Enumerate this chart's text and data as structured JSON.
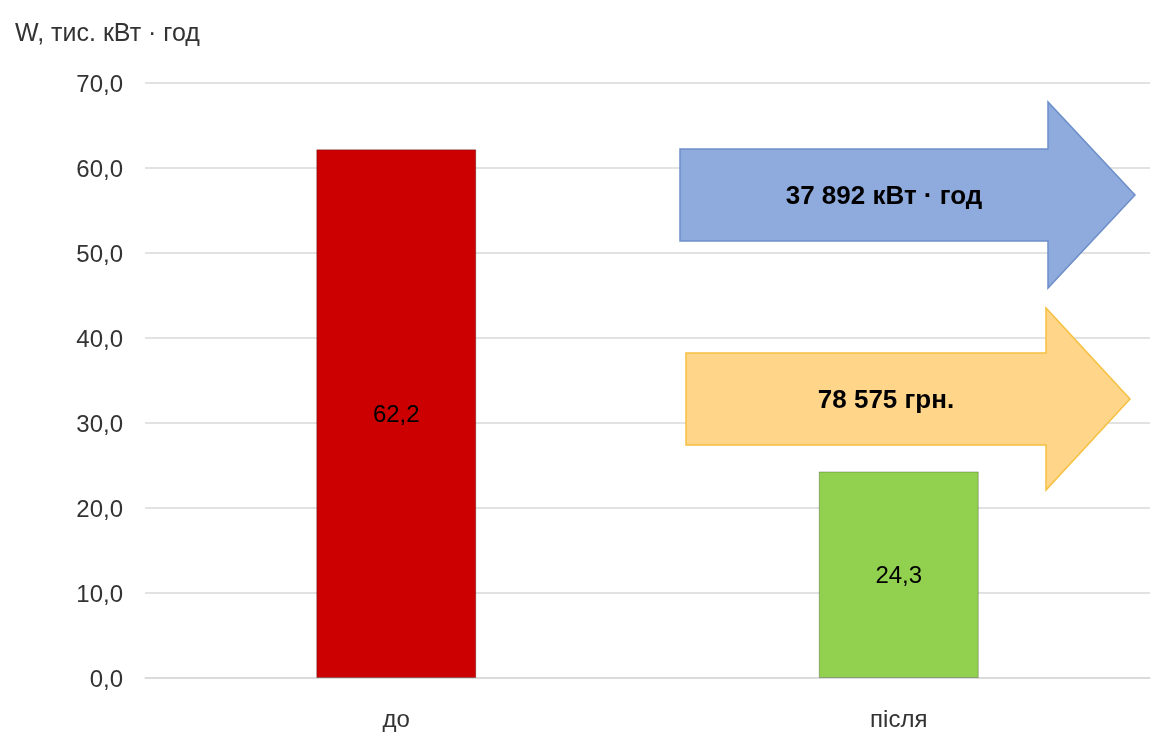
{
  "chart_data": {
    "type": "bar",
    "ylabel": "W, тис. кВт · год",
    "categories": [
      "до",
      "після"
    ],
    "values": [
      62.2,
      24.3
    ],
    "colors": [
      "#cc0000",
      "#92d050"
    ],
    "value_labels": [
      "62,2",
      "24,3"
    ],
    "ylim": [
      0,
      70
    ],
    "yticks": [
      {
        "value": 0,
        "label": "0,0"
      },
      {
        "value": 10,
        "label": "10,0"
      },
      {
        "value": 20,
        "label": "20,0"
      },
      {
        "value": 30,
        "label": "30,0"
      },
      {
        "value": 40,
        "label": "40,0"
      },
      {
        "value": 50,
        "label": "50,0"
      },
      {
        "value": 60,
        "label": "60,0"
      },
      {
        "value": 70,
        "label": "70,0"
      }
    ],
    "grid": "y",
    "annotations": [
      "37 892 кВт · год",
      "78 575 грн."
    ]
  }
}
